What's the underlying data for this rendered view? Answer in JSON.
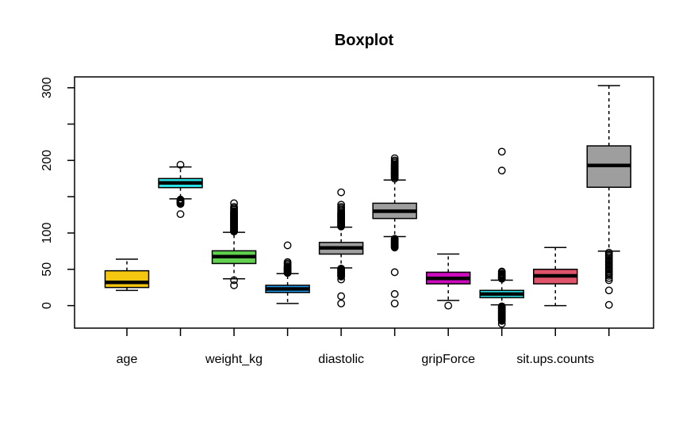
{
  "chart": {
    "title": "Boxplot"
  },
  "chart_data": {
    "type": "boxplot",
    "title": "Boxplot",
    "xlabel": "",
    "ylabel": "",
    "ylim": [
      -31,
      315
    ],
    "y_ticks": [
      0,
      50,
      100,
      150,
      200,
      250,
      300
    ],
    "y_tick_labels_shown": [
      0,
      50,
      100,
      200,
      300
    ],
    "grid": false,
    "legend": "none",
    "categories": [
      "age",
      "",
      "weight_kg",
      "",
      "diastolic",
      "",
      "gripForce",
      "",
      "sit.ups.counts",
      ""
    ],
    "shown_category_labels": [
      "age",
      "weight_kg",
      "diastolic",
      "gripForce",
      "sit.ups.counts"
    ],
    "boxes": [
      {
        "label": "age",
        "color": "#F5C710",
        "whisker_low": 21,
        "q1": 25,
        "median": 32,
        "q3": 48,
        "whisker_high": 64,
        "outliers": []
      },
      {
        "label": "",
        "color": "#28E2E5",
        "whisker_low": 147,
        "q1": 162.5,
        "median": 169,
        "q3": 175,
        "whisker_high": 191,
        "outliers": [
          194,
          146,
          145,
          144,
          143,
          142,
          141,
          140,
          126
        ]
      },
      {
        "label": "weight_kg",
        "color": "#61D04F",
        "whisker_low": 37,
        "q1": 58,
        "median": 67.5,
        "q3": 75.5,
        "whisker_high": 101,
        "outliers": [
          102,
          103,
          104,
          105,
          106,
          107,
          108,
          109,
          110,
          111,
          112,
          113,
          114,
          115,
          116,
          117,
          118,
          119,
          120,
          121,
          122,
          123,
          124,
          125,
          126,
          127,
          128,
          129,
          130,
          132,
          134,
          136,
          141,
          35,
          28
        ]
      },
      {
        "label": "",
        "color": "#2297E6",
        "whisker_low": 3,
        "q1": 18,
        "median": 23,
        "q3": 28,
        "whisker_high": 44,
        "outliers": [
          45,
          46,
          47,
          48,
          49,
          50,
          51,
          52,
          53,
          54,
          56,
          58,
          60,
          83
        ]
      },
      {
        "label": "diastolic",
        "color": "#9E9E9E",
        "whisker_low": 52,
        "q1": 71,
        "median": 79.5,
        "q3": 87,
        "whisker_high": 108,
        "outliers": [
          109,
          110,
          111,
          112,
          113,
          114,
          115,
          116,
          117,
          118,
          119,
          120,
          121,
          122,
          123,
          124,
          125,
          126,
          127,
          128,
          130,
          132,
          134,
          136,
          139,
          156,
          51,
          50,
          49,
          48,
          47,
          46,
          45,
          44,
          43,
          42,
          41,
          40,
          36,
          13,
          3
        ]
      },
      {
        "label": "",
        "color": "#9E9E9E",
        "whisker_low": 95,
        "q1": 120,
        "median": 130,
        "q3": 141,
        "whisker_high": 173,
        "outliers": [
          175,
          177,
          178,
          179,
          180,
          181,
          182,
          183,
          184,
          185,
          186,
          187,
          188,
          189,
          190,
          191,
          192,
          193,
          194,
          196,
          198,
          200,
          203,
          92,
          91,
          90,
          89,
          88,
          87,
          86,
          85,
          84,
          83,
          82,
          81,
          80,
          46,
          16,
          3
        ]
      },
      {
        "label": "gripForce",
        "color": "#CD0BBC",
        "whisker_low": 7,
        "q1": 30,
        "median": 37.5,
        "q3": 46,
        "whisker_high": 71,
        "outliers": [
          0
        ]
      },
      {
        "label": "",
        "color": "#28E2E5",
        "whisker_low": 1,
        "q1": 11,
        "median": 16,
        "q3": 21,
        "whisker_high": 35,
        "outliers": [
          37,
          38,
          39,
          40,
          41,
          42,
          43,
          44,
          46,
          47,
          186,
          212,
          -1,
          -2,
          -3,
          -4,
          -5,
          -6,
          -7,
          -8,
          -9,
          -10,
          -11,
          -12,
          -13,
          -14,
          -15,
          -16,
          -17,
          -18,
          -19,
          -20,
          -21,
          -25
        ]
      },
      {
        "label": "sit.ups.counts",
        "color": "#DF536B",
        "whisker_low": 0,
        "q1": 30,
        "median": 41,
        "q3": 50,
        "whisker_high": 80,
        "outliers": []
      },
      {
        "label": "",
        "color": "#9E9E9E",
        "whisker_low": 75,
        "q1": 163,
        "median": 193,
        "q3": 220,
        "whisker_high": 303,
        "outliers": [
          73,
          71,
          69,
          67,
          65,
          63,
          61,
          59,
          57,
          55,
          53,
          51,
          49,
          47,
          45,
          43,
          41,
          38,
          35,
          21,
          1
        ]
      }
    ]
  }
}
